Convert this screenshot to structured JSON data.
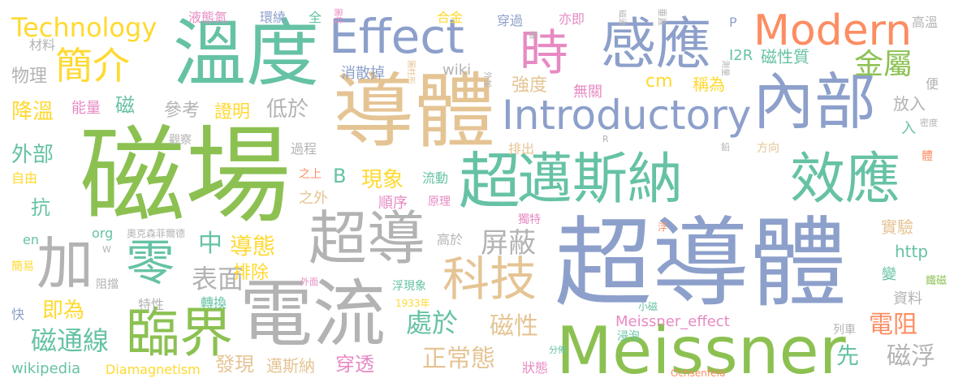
{
  "palette": {
    "green": "#8cc152",
    "blue": "#8da0cb",
    "tan": "#e5c494",
    "orange": "#fc8d62",
    "teal": "#66c2a5",
    "gold": "#ffd92f",
    "pink": "#e78ac3",
    "gray": "#b3b3b3"
  },
  "words": [
    {
      "text": "超導體",
      "color": "blue"
    },
    {
      "text": "磁場",
      "color": "green"
    },
    {
      "text": "導體",
      "color": "tan"
    },
    {
      "text": "溫度",
      "color": "teal"
    },
    {
      "text": "電流",
      "color": "gray"
    },
    {
      "text": "Meissner",
      "color": "green"
    },
    {
      "text": "邁斯納",
      "color": "teal"
    },
    {
      "text": "效應",
      "color": "teal"
    },
    {
      "text": "內部",
      "color": "blue"
    },
    {
      "text": "感應",
      "color": "blue"
    },
    {
      "text": "超導",
      "color": "gray"
    },
    {
      "text": "臨界",
      "color": "green"
    },
    {
      "text": "超",
      "color": "teal"
    },
    {
      "text": "Effect",
      "color": "blue"
    },
    {
      "text": "Introductory",
      "color": "blue"
    },
    {
      "text": "Modern",
      "color": "orange"
    },
    {
      "text": "時",
      "color": "pink"
    },
    {
      "text": "加",
      "color": "gray"
    },
    {
      "text": "零",
      "color": "teal"
    },
    {
      "text": "科技",
      "color": "tan"
    },
    {
      "text": "簡介",
      "color": "gold"
    },
    {
      "text": "Technology",
      "color": "gold"
    },
    {
      "text": "金屬",
      "color": "green"
    },
    {
      "text": "屏蔽",
      "color": "gray"
    },
    {
      "text": "表面",
      "color": "gray"
    },
    {
      "text": "磁通線",
      "color": "teal"
    },
    {
      "text": "處於",
      "color": "teal"
    },
    {
      "text": "正常態",
      "color": "tan"
    },
    {
      "text": "磁性",
      "color": "tan"
    },
    {
      "text": "電阻",
      "color": "orange"
    },
    {
      "text": "磁浮",
      "color": "gray"
    },
    {
      "text": "中",
      "color": "teal"
    },
    {
      "text": "導態",
      "color": "gold"
    },
    {
      "text": "即為",
      "color": "gold"
    },
    {
      "text": "外部",
      "color": "teal"
    },
    {
      "text": "降溫",
      "color": "gold"
    },
    {
      "text": "現象",
      "color": "gold"
    },
    {
      "text": "低於",
      "color": "gray"
    },
    {
      "text": "發現",
      "color": "tan"
    },
    {
      "text": "邁斯納",
      "color": "tan"
    },
    {
      "text": "穿透",
      "color": "pink"
    },
    {
      "text": "先",
      "color": "teal"
    },
    {
      "text": "磁",
      "color": "teal"
    },
    {
      "text": "抗",
      "color": "teal"
    },
    {
      "text": "排除",
      "color": "gold"
    },
    {
      "text": "證明",
      "color": "gold"
    },
    {
      "text": "參考",
      "color": "gray"
    },
    {
      "text": "物理",
      "color": "gray"
    },
    {
      "text": "材料",
      "color": "gray"
    },
    {
      "text": "能量",
      "color": "pink"
    },
    {
      "text": "B",
      "color": "teal"
    },
    {
      "text": "cm",
      "color": "gold"
    },
    {
      "text": "稱為",
      "color": "gold"
    },
    {
      "text": "強度",
      "color": "tan"
    },
    {
      "text": "無關",
      "color": "pink"
    },
    {
      "text": "放入",
      "color": "gray"
    },
    {
      "text": "磁性質",
      "color": "teal"
    },
    {
      "text": "I2R",
      "color": "teal"
    },
    {
      "text": "wiki",
      "color": "gray"
    },
    {
      "text": "消散掉",
      "color": "blue"
    },
    {
      "text": "亦即",
      "color": "pink"
    },
    {
      "text": "穿過",
      "color": "blue"
    },
    {
      "text": "合金",
      "color": "gold"
    },
    {
      "text": "全",
      "color": "teal"
    },
    {
      "text": "環繞",
      "color": "blue"
    },
    {
      "text": "液態氮",
      "color": "pink"
    },
    {
      "text": "P",
      "color": "blue"
    },
    {
      "text": "高溫",
      "color": "gray"
    },
    {
      "text": "實驗",
      "color": "tan"
    },
    {
      "text": "http",
      "color": "teal"
    },
    {
      "text": "資料",
      "color": "gray"
    },
    {
      "text": "wikipedia",
      "color": "teal"
    },
    {
      "text": "Diamagnetism",
      "color": "gold"
    },
    {
      "text": "狀態",
      "color": "pink"
    },
    {
      "text": "Meissner_effect",
      "color": "pink"
    },
    {
      "text": "Ochsenfeld",
      "color": "orange"
    },
    {
      "text": "過程",
      "color": "gray"
    },
    {
      "text": "觀察",
      "color": "gray"
    },
    {
      "text": "自由",
      "color": "gold"
    },
    {
      "text": "之上",
      "color": "orange"
    },
    {
      "text": "之外",
      "color": "tan"
    },
    {
      "text": "順序",
      "color": "pink"
    },
    {
      "text": "原理",
      "color": "pink"
    },
    {
      "text": "流動",
      "color": "teal"
    },
    {
      "text": "排出",
      "color": "tan"
    },
    {
      "text": "方向",
      "color": "tan"
    },
    {
      "text": "高於",
      "color": "gray"
    },
    {
      "text": "獨特",
      "color": "pink"
    },
    {
      "text": "en",
      "color": "teal"
    },
    {
      "text": "org",
      "color": "teal"
    },
    {
      "text": "奧克森菲爾德",
      "color": "gray"
    },
    {
      "text": "簡易",
      "color": "gold"
    },
    {
      "text": "阻擋",
      "color": "gray"
    },
    {
      "text": "快",
      "color": "blue"
    },
    {
      "text": "特性",
      "color": "gray"
    },
    {
      "text": "轉換",
      "color": "teal"
    },
    {
      "text": "浮現象",
      "color": "teal"
    },
    {
      "text": "1933年",
      "color": "gold"
    },
    {
      "text": "外面",
      "color": "pink"
    },
    {
      "text": "小磁",
      "color": "teal"
    },
    {
      "text": "浸泡",
      "color": "teal"
    },
    {
      "text": "分佈",
      "color": "teal"
    },
    {
      "text": "列車",
      "color": "gray"
    },
    {
      "text": "鐵磁",
      "color": "green"
    },
    {
      "text": "變",
      "color": "teal"
    },
    {
      "text": "入",
      "color": "teal"
    },
    {
      "text": "便",
      "color": "gray"
    },
    {
      "text": "密度",
      "color": "gray"
    },
    {
      "text": "體",
      "color": "orange"
    },
    {
      "text": "鉛",
      "color": "gray"
    },
    {
      "text": "R",
      "color": "gray"
    },
    {
      "text": "W",
      "color": "gray"
    },
    {
      "text": "浮",
      "color": "orange"
    },
    {
      "text": "圖柱",
      "color": "pink"
    },
    {
      "text": "圖柱形",
      "color": "tan"
    },
    {
      "text": "磁通",
      "color": "gray"
    },
    {
      "text": "垂直",
      "color": "gray"
    },
    {
      "text": "軸",
      "color": "gray"
    },
    {
      "text": "外加",
      "color": "gray"
    },
    {
      "text": "測量",
      "color": "gray"
    }
  ]
}
